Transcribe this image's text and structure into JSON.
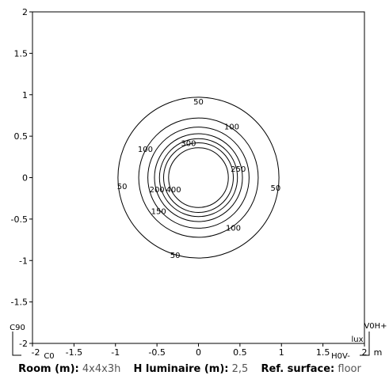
{
  "chart_data": {
    "type": "contour",
    "xlim": [
      -2,
      2
    ],
    "ylim": [
      -2,
      2
    ],
    "xticks": [
      "-2",
      "-1.5",
      "-1",
      "-0.5",
      "0",
      "0.5",
      "1",
      "1.5",
      "2"
    ],
    "yticks": [
      "2",
      "1.5",
      "1",
      "0.5",
      "0",
      "-0.5",
      "-1",
      "-1.5",
      "-2"
    ],
    "unit_x": "m",
    "unit_value": "lux",
    "corner_labels": {
      "c0": "C0",
      "c90": "C90",
      "v0h": "V0H+",
      "h0v": "H0V-"
    },
    "isolines": [
      {
        "value": 50,
        "radius": 0.97
      },
      {
        "value": 100,
        "radius": 0.72
      },
      {
        "value": 150,
        "radius": 0.61
      },
      {
        "value": 200,
        "radius": 0.53
      },
      {
        "value": 250,
        "radius": 0.47
      },
      {
        "value": 300,
        "radius": 0.42
      },
      {
        "value": 400,
        "radius": 0.36
      }
    ],
    "contour_labels": [
      {
        "text": "50",
        "x": 0.0,
        "y": 0.92
      },
      {
        "text": "50",
        "x": -0.92,
        "y": -0.1
      },
      {
        "text": "50",
        "x": 0.93,
        "y": -0.12
      },
      {
        "text": "50",
        "x": -0.28,
        "y": -0.93
      },
      {
        "text": "100",
        "x": 0.4,
        "y": 0.62
      },
      {
        "text": "100",
        "x": -0.64,
        "y": 0.35
      },
      {
        "text": "100",
        "x": 0.42,
        "y": -0.6
      },
      {
        "text": "150",
        "x": -0.48,
        "y": -0.4
      },
      {
        "text": "200",
        "x": -0.5,
        "y": -0.14
      },
      {
        "text": "250",
        "x": 0.48,
        "y": 0.11
      },
      {
        "text": "300",
        "x": -0.12,
        "y": 0.42
      },
      {
        "text": "400",
        "x": -0.3,
        "y": -0.14
      }
    ]
  },
  "info": {
    "room_label": "Room (m):",
    "room_value": "4x4x3h",
    "h_label": "H luminaire (m):",
    "h_value": "2,5",
    "ref_label": "Ref. surface:",
    "ref_value": "floor"
  }
}
